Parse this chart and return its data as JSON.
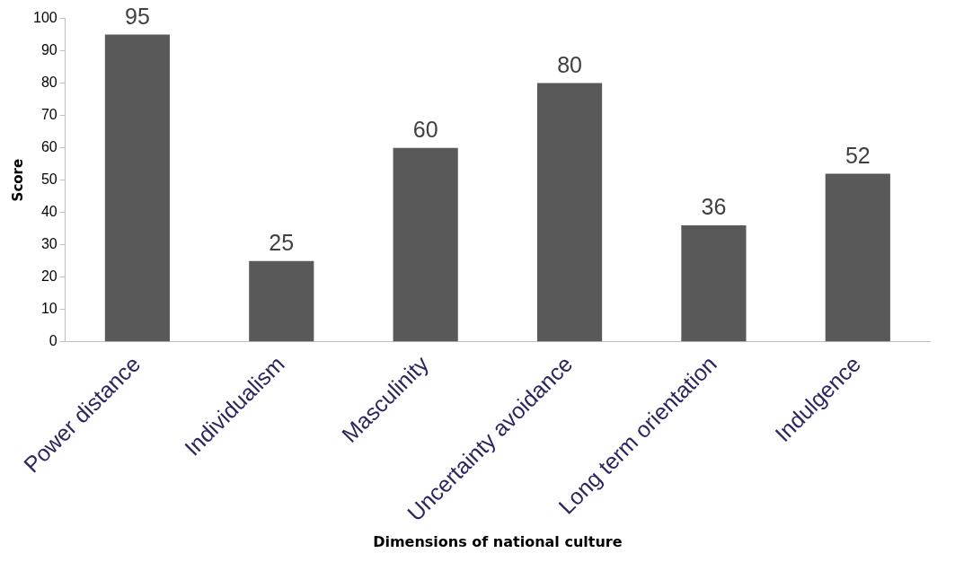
{
  "chart_data": {
    "type": "bar",
    "xlabel": "Dimensions of national culture",
    "ylabel": "Score",
    "categories": [
      "Power distance",
      "Individualism",
      "Masculinity",
      "Uncertainty avoidance",
      "Long term orientation",
      "Indulgence"
    ],
    "values": [
      95,
      25,
      60,
      80,
      36,
      52
    ],
    "color": "#595959",
    "ylim": [
      0,
      100
    ],
    "yticks": [
      0,
      10,
      20,
      30,
      40,
      50,
      60,
      70,
      80,
      90,
      100
    ],
    "grid": false,
    "legend": false,
    "data_labels": true
  }
}
